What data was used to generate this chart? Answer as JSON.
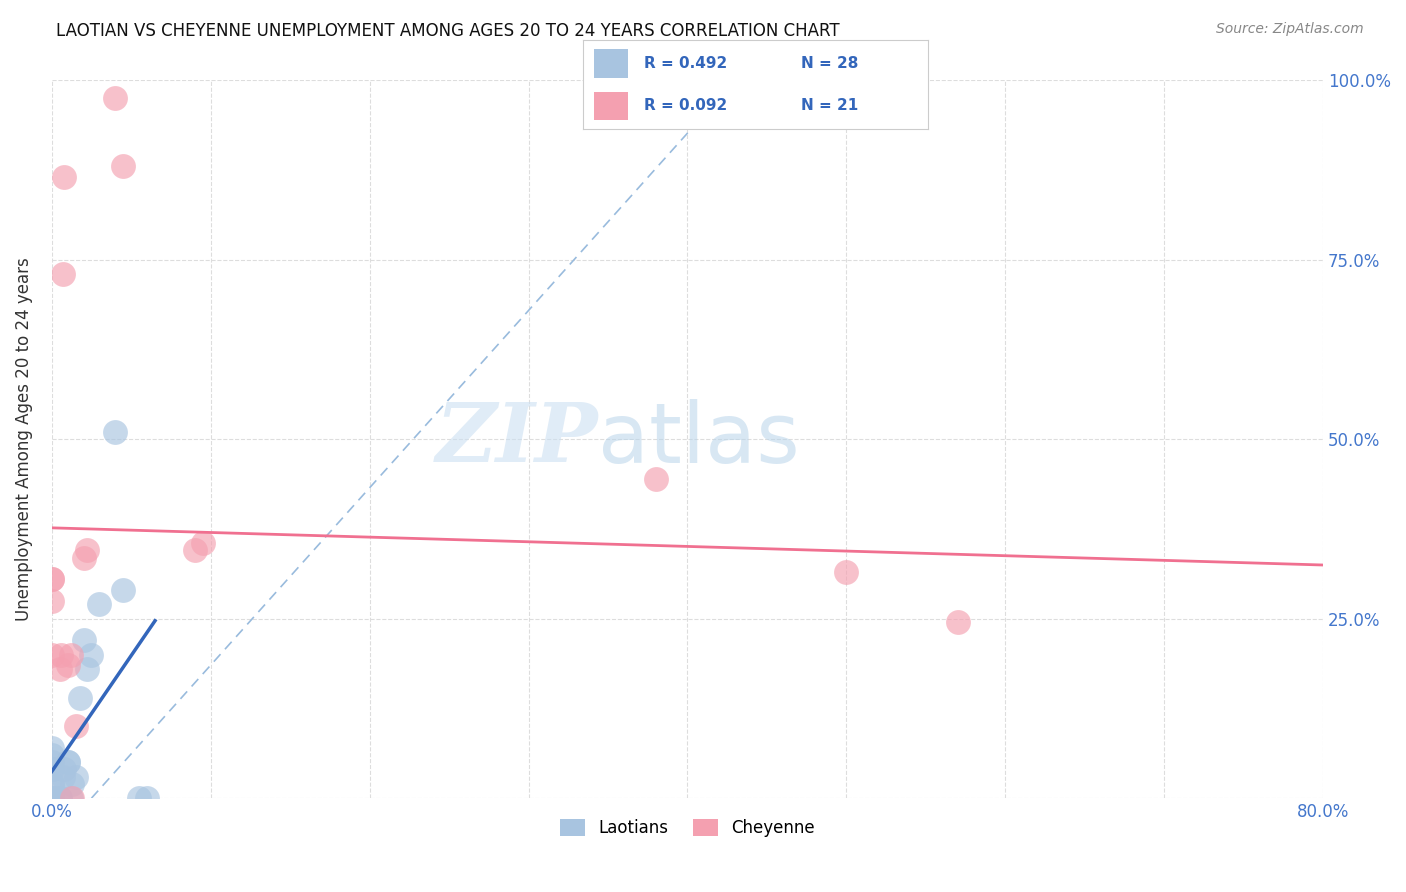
{
  "title": "LAOTIAN VS CHEYENNE UNEMPLOYMENT AMONG AGES 20 TO 24 YEARS CORRELATION CHART",
  "source": "Source: ZipAtlas.com",
  "ylabel": "Unemployment Among Ages 20 to 24 years",
  "xlim": [
    0.0,
    0.8
  ],
  "ylim": [
    0.0,
    1.0
  ],
  "xticks": [
    0.0,
    0.1,
    0.2,
    0.3,
    0.4,
    0.5,
    0.6,
    0.7,
    0.8
  ],
  "xticklabels": [
    "0.0%",
    "",
    "",
    "",
    "",
    "",
    "",
    "",
    "80.0%"
  ],
  "yticks": [
    0.0,
    0.25,
    0.5,
    0.75,
    1.0
  ],
  "yticklabels_right": [
    "",
    "25.0%",
    "50.0%",
    "75.0%",
    "100.0%"
  ],
  "legend_r1": "R = 0.492",
  "legend_n1": "N = 28",
  "legend_r2": "R = 0.092",
  "legend_n2": "N = 21",
  "laotian_color": "#a8c4e0",
  "cheyenne_color": "#f4a0b0",
  "laotian_line_color": "#3366bb",
  "cheyenne_line_color": "#f07090",
  "dashed_line_color": "#99bbdd",
  "watermark_zip_color": "#cce0f0",
  "watermark_atlas_color": "#b8d4e8",
  "laotian_points": [
    [
      0.0,
      0.0
    ],
    [
      0.0,
      0.0
    ],
    [
      0.0,
      0.0
    ],
    [
      0.0,
      0.02
    ],
    [
      0.0,
      0.02
    ],
    [
      0.0,
      0.04
    ],
    [
      0.0,
      0.04
    ],
    [
      0.0,
      0.05
    ],
    [
      0.0,
      0.06
    ],
    [
      0.0,
      0.07
    ],
    [
      0.005,
      0.0
    ],
    [
      0.005,
      0.0
    ],
    [
      0.007,
      0.03
    ],
    [
      0.008,
      0.04
    ],
    [
      0.01,
      0.05
    ],
    [
      0.01,
      0.05
    ],
    [
      0.012,
      0.0
    ],
    [
      0.013,
      0.02
    ],
    [
      0.015,
      0.03
    ],
    [
      0.018,
      0.14
    ],
    [
      0.02,
      0.22
    ],
    [
      0.022,
      0.18
    ],
    [
      0.025,
      0.2
    ],
    [
      0.03,
      0.27
    ],
    [
      0.04,
      0.51
    ],
    [
      0.045,
      0.29
    ],
    [
      0.055,
      0.0
    ],
    [
      0.06,
      0.0
    ]
  ],
  "cheyenne_points": [
    [
      0.0,
      0.305
    ],
    [
      0.0,
      0.275
    ],
    [
      0.0,
      0.305
    ],
    [
      0.0,
      0.2
    ],
    [
      0.005,
      0.18
    ],
    [
      0.006,
      0.2
    ],
    [
      0.007,
      0.73
    ],
    [
      0.008,
      0.865
    ],
    [
      0.01,
      0.185
    ],
    [
      0.012,
      0.2
    ],
    [
      0.013,
      0.0
    ],
    [
      0.015,
      0.1
    ],
    [
      0.02,
      0.335
    ],
    [
      0.022,
      0.345
    ],
    [
      0.04,
      0.975
    ],
    [
      0.045,
      0.88
    ],
    [
      0.09,
      0.345
    ],
    [
      0.095,
      0.355
    ],
    [
      0.38,
      0.445
    ],
    [
      0.5,
      0.315
    ],
    [
      0.57,
      0.245
    ]
  ],
  "background_color": "#ffffff",
  "grid_color": "#dddddd"
}
